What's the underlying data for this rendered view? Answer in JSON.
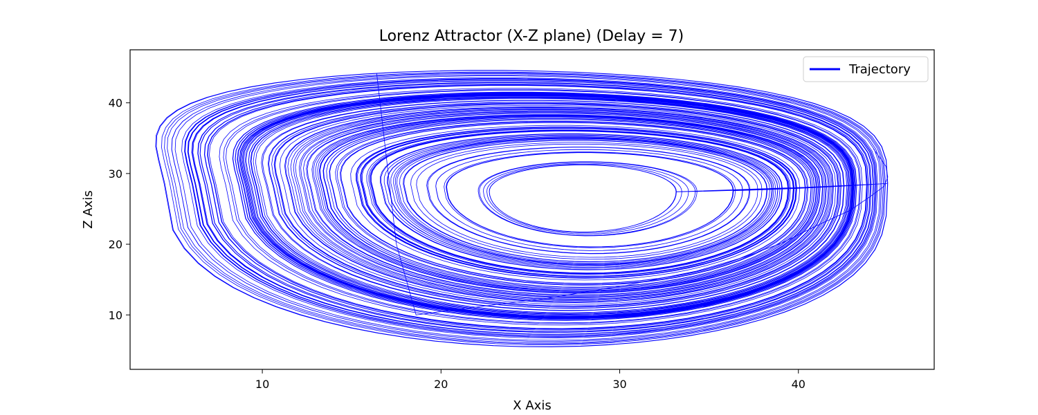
{
  "chart_data": {
    "type": "line",
    "title": "Lorenz Attractor (X-Z plane) (Delay = 7)",
    "xlabel": "X Axis",
    "ylabel": "Z Axis",
    "xlim": [
      2.6,
      47.6
    ],
    "ylim": [
      2.3,
      47.5
    ],
    "xticks": [
      10,
      20,
      30,
      40
    ],
    "yticks": [
      10,
      20,
      30,
      40
    ],
    "grid": false,
    "legend": {
      "position": "upper right",
      "entries": [
        "Trajectory"
      ]
    },
    "series": [
      {
        "name": "Trajectory",
        "color": "#0000ff",
        "trajectory_approx": {
          "start": [
            44.2,
            33.5
          ],
          "transient": [
            [
              44.2,
              33.5
            ],
            [
              44.9,
              31.0
            ],
            [
              45.0,
              29.5
            ],
            [
              44.8,
              28.2
            ],
            [
              44.0,
              26.7
            ],
            [
              42.9,
              24.8
            ],
            [
              41.0,
              22.6
            ],
            [
              39.1,
              20.2
            ],
            [
              37.0,
              18.2
            ],
            [
              34.3,
              16.2
            ],
            [
              30.4,
              14.2
            ],
            [
              25.8,
              12.3
            ],
            [
              21.6,
              11.0
            ],
            [
              18.6,
              10.0
            ],
            [
              17.5,
              20.0
            ],
            [
              16.4,
              44.2
            ]
          ],
          "orbit_centre": [
            26.3,
            26.5
          ],
          "innermost_orbit_x_range": [
            23.0,
            31.8
          ],
          "innermost_orbit_z_range": [
            22.0,
            31.0
          ],
          "outermost_orbit_x_range": [
            4.5,
            45.6
          ],
          "outermost_orbit_z_range": [
            4.5,
            45.6
          ],
          "right_tip": [
            45.6,
            29.8
          ],
          "orbit_count": 140
        }
      }
    ]
  }
}
